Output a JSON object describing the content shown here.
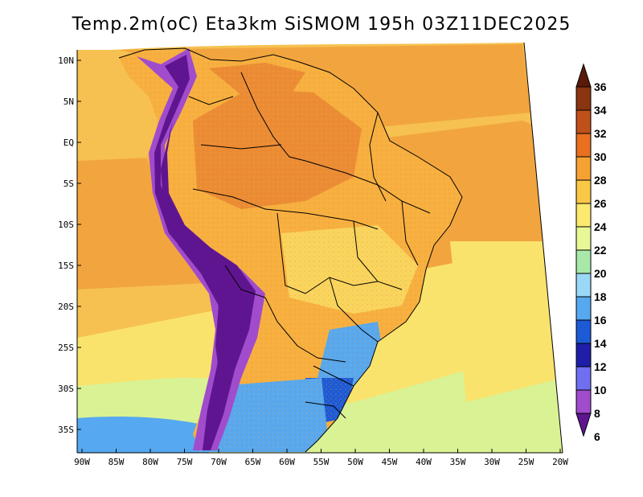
{
  "title": "Temp.2m(oC) Eta3km SiSMOM 195h 03Z11DEC2025",
  "map": {
    "lat_labels": [
      "10N",
      "5N",
      "EQ",
      "5S",
      "10S",
      "15S",
      "20S",
      "25S",
      "30S",
      "35S"
    ],
    "lon_labels": [
      "90W",
      "85W",
      "80W",
      "75W",
      "70W",
      "65W",
      "60W",
      "55W",
      "50W",
      "45W",
      "40W",
      "35W",
      "30W",
      "25W",
      "20W"
    ]
  },
  "colorbar": {
    "labels": [
      "36",
      "34",
      "32",
      "30",
      "28",
      "26",
      "24",
      "22",
      "20",
      "18",
      "16",
      "14",
      "12",
      "10",
      "8",
      "6"
    ],
    "colors": [
      "#5a1a08",
      "#8b3510",
      "#c0501a",
      "#e8701e",
      "#f6a232",
      "#f8c846",
      "#fbe970",
      "#e8f896",
      "#a8e8a8",
      "#9ad8f8",
      "#56a8f0",
      "#1d5ad6",
      "#1e1ea8",
      "#6f6ff2",
      "#a04ccc",
      "#5f1590"
    ]
  },
  "palette": {
    "ocean_warm": "#f2a53e",
    "ocean_mid": "#f6c150",
    "ocean_cool": "#f9e36c",
    "ocean_south": "#d9f294",
    "land_hot": "#eb8c35",
    "land_warm": "#f7b040",
    "land_mild": "#f9d55e",
    "andes": "#5f1590",
    "andes_edge": "#a04ccc",
    "cool_south": "#56a8f0",
    "cool_deep": "#1d5ad6",
    "border": "#000000"
  }
}
